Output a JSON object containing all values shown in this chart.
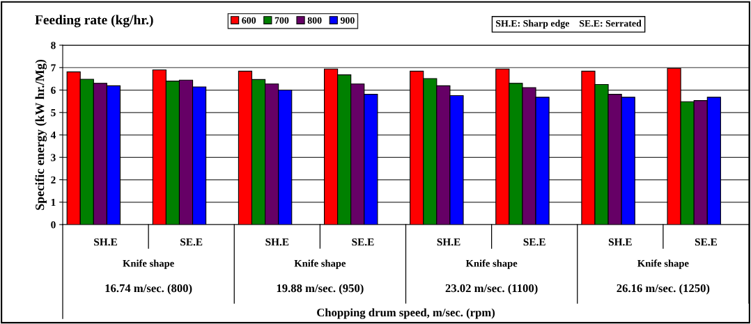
{
  "chart_data": {
    "type": "bar",
    "ylabel": "Specific energy (kW hr./Mg)",
    "legend_title": "Feeding rate (kg/hr.)",
    "categories": [
      "SH.E",
      "SE.E",
      "SH.E",
      "SE.E",
      "SH.E",
      "SE.E",
      "SH.E",
      "SE.E"
    ],
    "series": [
      {
        "name": "600",
        "color": "#ff0000",
        "values": [
          6.81,
          6.9,
          6.84,
          6.94,
          6.84,
          6.94,
          6.84,
          6.97
        ]
      },
      {
        "name": "700",
        "color": "#008000",
        "values": [
          6.48,
          6.4,
          6.47,
          6.68,
          6.51,
          6.3,
          6.25,
          5.48
        ]
      },
      {
        "name": "800",
        "color": "#660066",
        "values": [
          6.3,
          6.44,
          6.27,
          6.27,
          6.19,
          6.11,
          5.81,
          5.53
        ]
      },
      {
        "name": "900",
        "color": "#0000ff",
        "values": [
          6.19,
          6.14,
          6.0,
          5.81,
          5.75,
          5.68,
          5.68,
          5.68
        ]
      }
    ],
    "annotations": [
      "SH.E: Sharp edge    SE.E: Serrated",
      "Knife shape",
      "Knife shape",
      "Knife shape",
      "Knife shape",
      "16.74 m/sec. (800)",
      "19.88 m/sec. (950)",
      "23.02 m/sec. (1100)",
      "26.16 m/sec. (1250)",
      "Chopping drum speed, m/sec. (rpm)"
    ],
    "ylim": [
      0,
      8
    ],
    "yticks": [
      0,
      1,
      2,
      3,
      4,
      5,
      6,
      7,
      8
    ],
    "grid": "y",
    "legend": "top"
  }
}
